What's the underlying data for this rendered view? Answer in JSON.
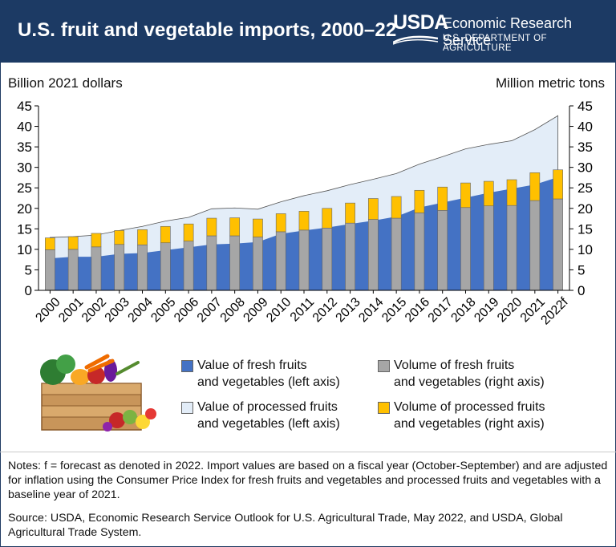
{
  "header": {
    "title": "U.S. fruit and vegetable imports, 2000–22",
    "logo_text": "USDA",
    "agency": "Economic Research Service",
    "department": "U.S. DEPARTMENT OF AGRICULTURE"
  },
  "chart_data": {
    "type": "bar",
    "ylabel": "Billion 2021 dollars",
    "y2label": "Million metric tons",
    "ylim": [
      0,
      45
    ],
    "y2lim": [
      0,
      45
    ],
    "yticks": [
      0,
      5,
      10,
      15,
      20,
      25,
      30,
      35,
      40,
      45
    ],
    "grid": false,
    "categories": [
      "2000",
      "2001",
      "2002",
      "2003",
      "2004",
      "2005",
      "2006",
      "2007",
      "2008",
      "2009",
      "2010",
      "2011",
      "2012",
      "2013",
      "2014",
      "2015",
      "2016",
      "2017",
      "2018",
      "2019",
      "2020",
      "2021",
      "2022f"
    ],
    "areas": [
      {
        "name": "Value of fresh fruits and vegetables (left axis)",
        "color": "#4472c4",
        "values": [
          7.8,
          8.2,
          8.2,
          8.9,
          9.1,
          9.8,
          10.5,
          11.2,
          11.4,
          11.8,
          13.8,
          14.6,
          15.3,
          16.2,
          17.0,
          18.0,
          20.2,
          21.4,
          22.6,
          23.8,
          24.8,
          25.8,
          27.6
        ]
      },
      {
        "name": "Value of processed fruits and vegetables (left axis)",
        "color": "#e3edf8",
        "values": [
          12.9,
          13.1,
          13.5,
          14.6,
          15.6,
          16.9,
          17.8,
          19.9,
          20.1,
          19.8,
          21.6,
          23.1,
          24.3,
          25.8,
          27.1,
          28.5,
          30.8,
          32.6,
          34.5,
          35.6,
          36.5,
          39.2,
          42.6
        ]
      }
    ],
    "bars": [
      {
        "name": "Volume of fresh fruits and vegetables (right axis)",
        "color": "#a6a6a6",
        "values": [
          9.9,
          10.0,
          10.6,
          11.2,
          11.1,
          11.6,
          12.0,
          13.3,
          13.3,
          13.0,
          14.3,
          14.7,
          15.2,
          16.4,
          17.3,
          17.6,
          18.9,
          19.5,
          20.2,
          20.6,
          20.7,
          21.9,
          22.3
        ]
      },
      {
        "name": "Volume of processed fruits and vegetables (right axis)",
        "color": "#ffc000",
        "values": [
          2.9,
          3.1,
          3.3,
          3.4,
          3.7,
          4.0,
          4.2,
          4.3,
          4.4,
          4.4,
          4.4,
          4.6,
          4.8,
          4.9,
          5.1,
          5.3,
          5.5,
          5.7,
          6.0,
          6.0,
          6.3,
          6.8,
          7.1
        ]
      }
    ]
  },
  "legend": [
    {
      "label_line1": "Value of fresh fruits",
      "label_line2": "and vegetables (left axis)",
      "color": "#4472c4"
    },
    {
      "label_line1": "Volume of fresh fruits",
      "label_line2": "and vegetables (right axis)",
      "color": "#a6a6a6"
    },
    {
      "label_line1": "Value of processed fruits",
      "label_line2": "and vegetables (left axis)",
      "color": "#e3edf8"
    },
    {
      "label_line1": "Volume of processed fruits",
      "label_line2": "and vegetables (right axis)",
      "color": "#ffc000"
    }
  ],
  "notes": "Notes: f = forecast as denoted in 2022. Import values are based on a fiscal year (October-September) and are adjusted for inflation using the Consumer Price Index for fresh fruits and vegetables and processed fruits and vegetables with a baseline year of 2021.",
  "source": "Source: USDA, Economic Research Service Outlook for U.S. Agricultural Trade, May 2022, and USDA, Global Agricultural Trade System."
}
